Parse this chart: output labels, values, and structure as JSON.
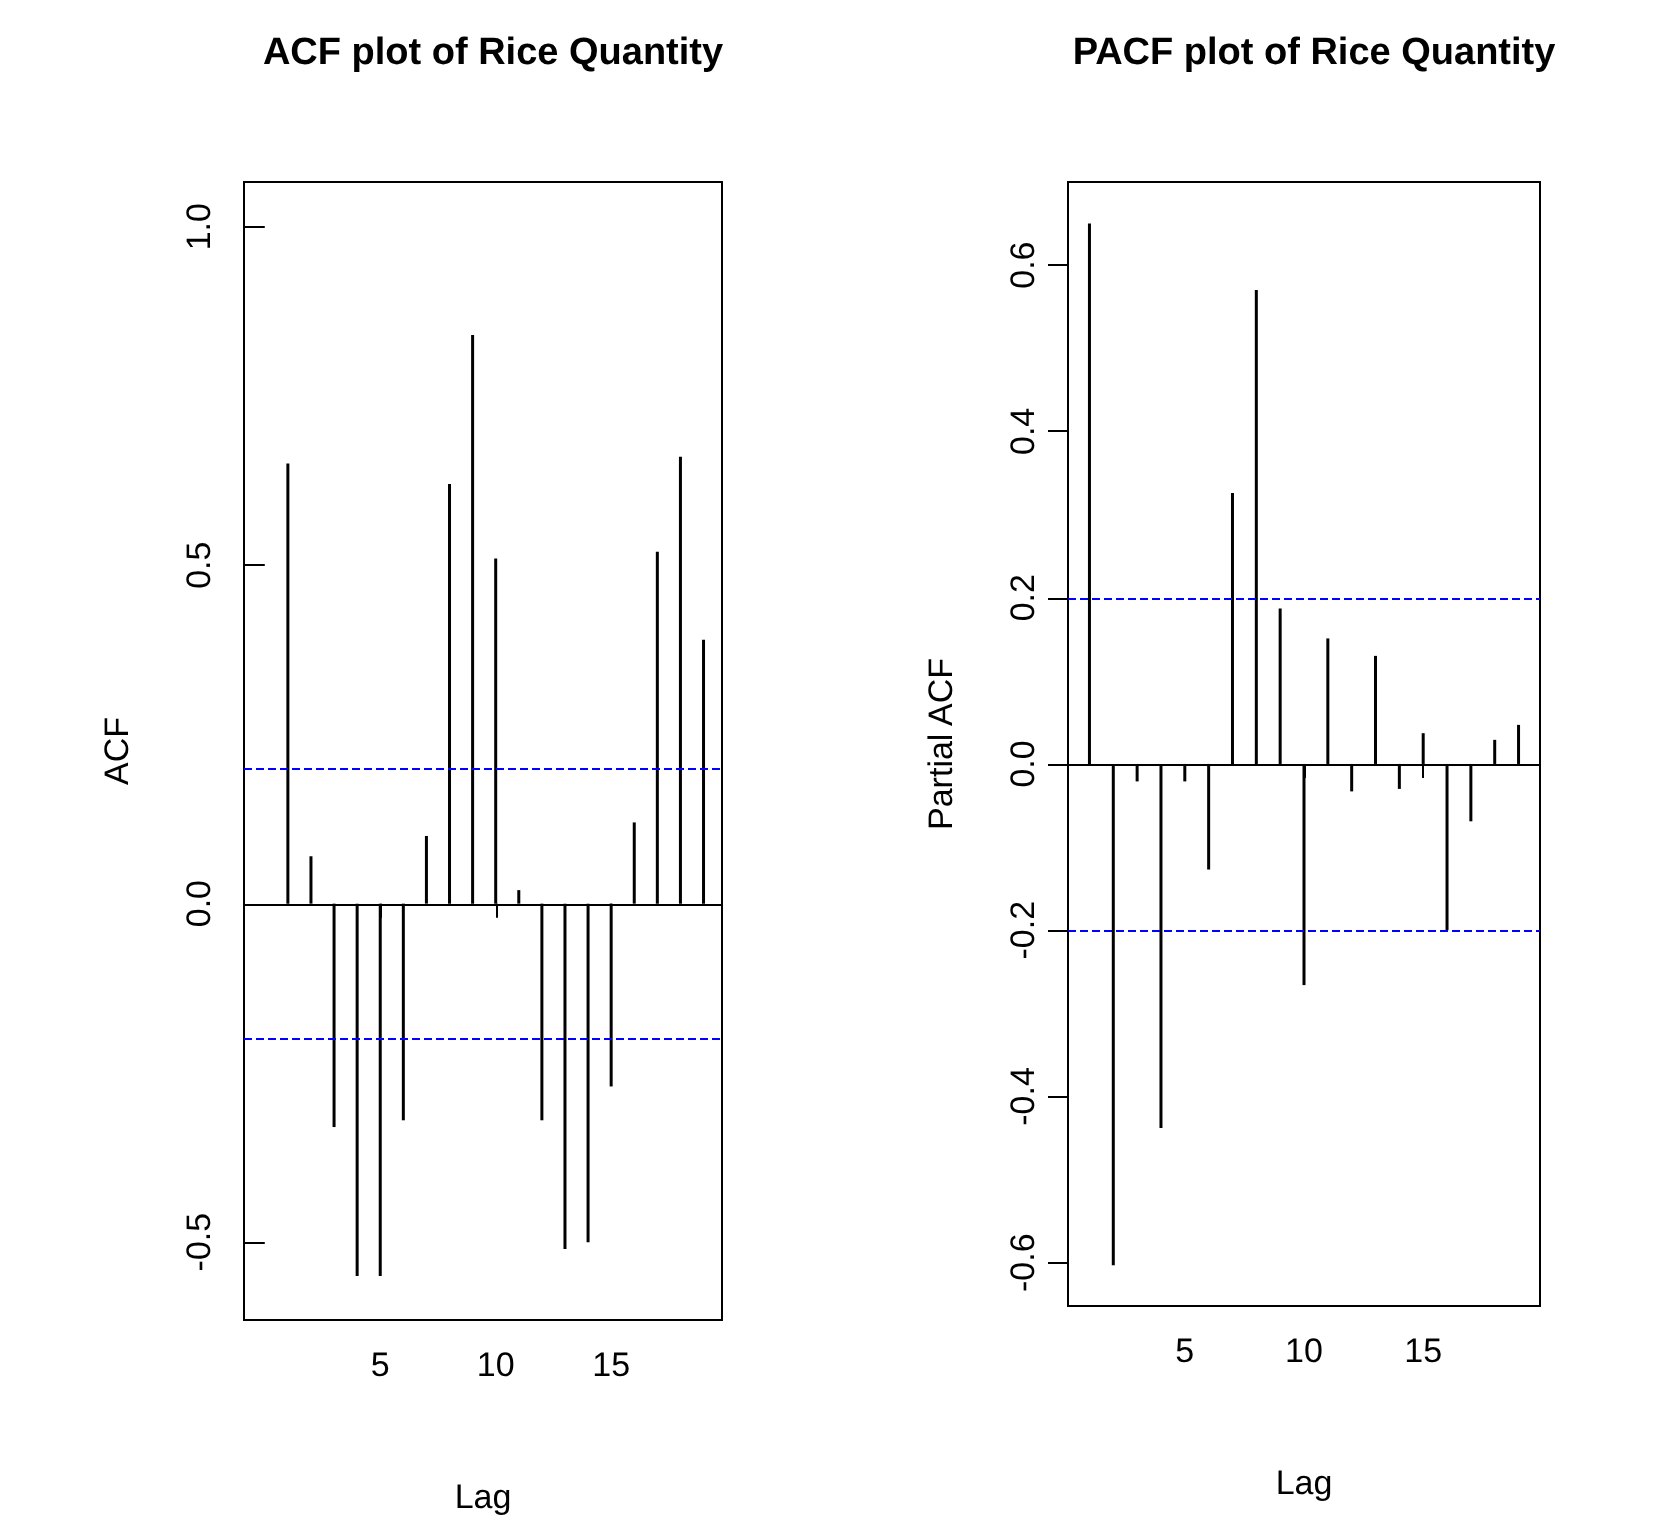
{
  "chart_data": [
    {
      "type": "bar",
      "title": "ACF plot of Rice Quantity",
      "xlabel": "Lag",
      "ylabel": "ACF",
      "x": [
        1,
        2,
        3,
        4,
        5,
        6,
        7,
        8,
        9,
        10,
        11,
        12,
        13,
        14,
        15,
        16,
        17,
        18,
        19
      ],
      "series": [
        {
          "color": "#000000",
          "values": [
            0.65,
            0.07,
            -0.33,
            -0.55,
            -0.55,
            -0.32,
            0.1,
            0.62,
            0.84,
            0.51,
            0.02,
            -0.32,
            -0.51,
            -0.5,
            -0.27,
            0.12,
            0.52,
            0.66,
            0.39
          ]
        }
      ],
      "xlim": [
        -0.9,
        19.8
      ],
      "xticks": [
        5,
        10,
        15
      ],
      "ylim": [
        -0.615,
        1.066
      ],
      "yticks": [
        {
          "value": -0.5,
          "label": "-0.5"
        },
        {
          "value": 0,
          "label": "0.0"
        },
        {
          "value": 0.5,
          "label": "0.5"
        },
        {
          "value": 1,
          "label": "1.0"
        }
      ],
      "ref_lines": [
        {
          "axis": "y",
          "value": 0,
          "color": "#000000",
          "line_style": "solid"
        },
        {
          "axis": "y",
          "value": 0.196,
          "color": "#0000ff",
          "line_style": "dashed"
        },
        {
          "axis": "y",
          "value": -0.196,
          "color": "#0000ff",
          "line_style": "dashed"
        }
      ],
      "grid": false
    },
    {
      "type": "bar",
      "title": "PACF plot of Rice Quantity",
      "xlabel": "Lag",
      "ylabel": "Partial ACF",
      "x": [
        1,
        2,
        3,
        4,
        5,
        6,
        7,
        8,
        9,
        10,
        11,
        12,
        13,
        14,
        15,
        16,
        17,
        18,
        19
      ],
      "series": [
        {
          "color": "#000000",
          "values": [
            0.65,
            -0.603,
            -0.021,
            -0.438,
            -0.021,
            -0.127,
            0.326,
            0.57,
            0.187,
            -0.266,
            0.151,
            -0.033,
            0.13,
            -0.03,
            0.037,
            -0.2,
            -0.069,
            0.029,
            0.047
          ]
        }
      ],
      "xlim": [
        0.1,
        19.9
      ],
      "xticks": [
        5,
        10,
        15
      ],
      "ylim": [
        -0.652,
        0.7
      ],
      "yticks": [
        {
          "value": -0.6,
          "label": "-0.6"
        },
        {
          "value": -0.4,
          "label": "-0.4"
        },
        {
          "value": -0.2,
          "label": "-0.2"
        },
        {
          "value": 0,
          "label": "0.0"
        },
        {
          "value": 0.2,
          "label": "0.2"
        },
        {
          "value": 0.4,
          "label": "0.4"
        },
        {
          "value": 0.6,
          "label": "0.6"
        }
      ],
      "ref_lines": [
        {
          "axis": "y",
          "value": 0,
          "color": "#000000",
          "line_style": "solid"
        },
        {
          "axis": "y",
          "value": 0.196,
          "color": "#0000ff",
          "line_style": "dashed"
        },
        {
          "axis": "y",
          "value": -0.196,
          "color": "#0000ff",
          "line_style": "dashed"
        }
      ],
      "grid": false
    }
  ]
}
